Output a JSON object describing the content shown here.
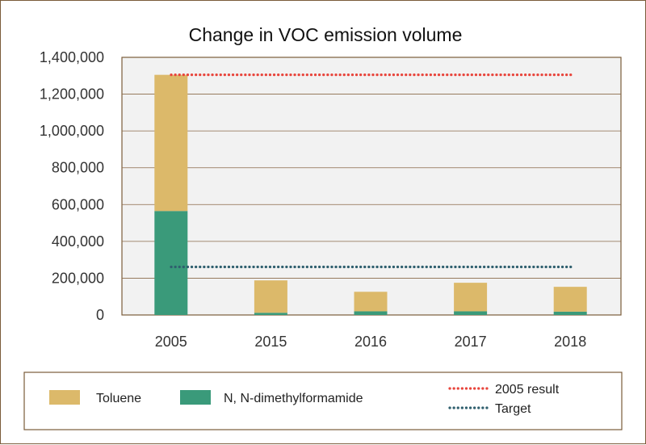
{
  "chart_data": {
    "type": "bar",
    "title": "Change in VOC emission volume",
    "xlabel": "",
    "ylabel": "",
    "categories": [
      "2005",
      "2015",
      "2016",
      "2017",
      "2018"
    ],
    "stacked": true,
    "series": [
      {
        "name": "N, N-dimethylformamide",
        "color": "#3a9a7a",
        "values": [
          565000,
          12000,
          20000,
          20000,
          18000
        ]
      },
      {
        "name": "Toluene",
        "color": "#dcb96a",
        "values": [
          740000,
          176000,
          106000,
          155000,
          135000
        ]
      }
    ],
    "reference_lines": [
      {
        "name": "2005 result",
        "value": 1305000,
        "color": "#e8453c"
      },
      {
        "name": "Target",
        "value": 261000,
        "color": "#2f5f6e"
      }
    ],
    "ylim": [
      0,
      1400000
    ],
    "yticks": [
      "0",
      "200,000",
      "400,000",
      "600,000",
      "800,000",
      "1,000,000",
      "1,200,000",
      "1,400,000"
    ],
    "ytick_values": [
      0,
      200000,
      400000,
      600000,
      800000,
      1000000,
      1200000,
      1400000
    ],
    "grid": true,
    "legend_position": "bottom"
  }
}
